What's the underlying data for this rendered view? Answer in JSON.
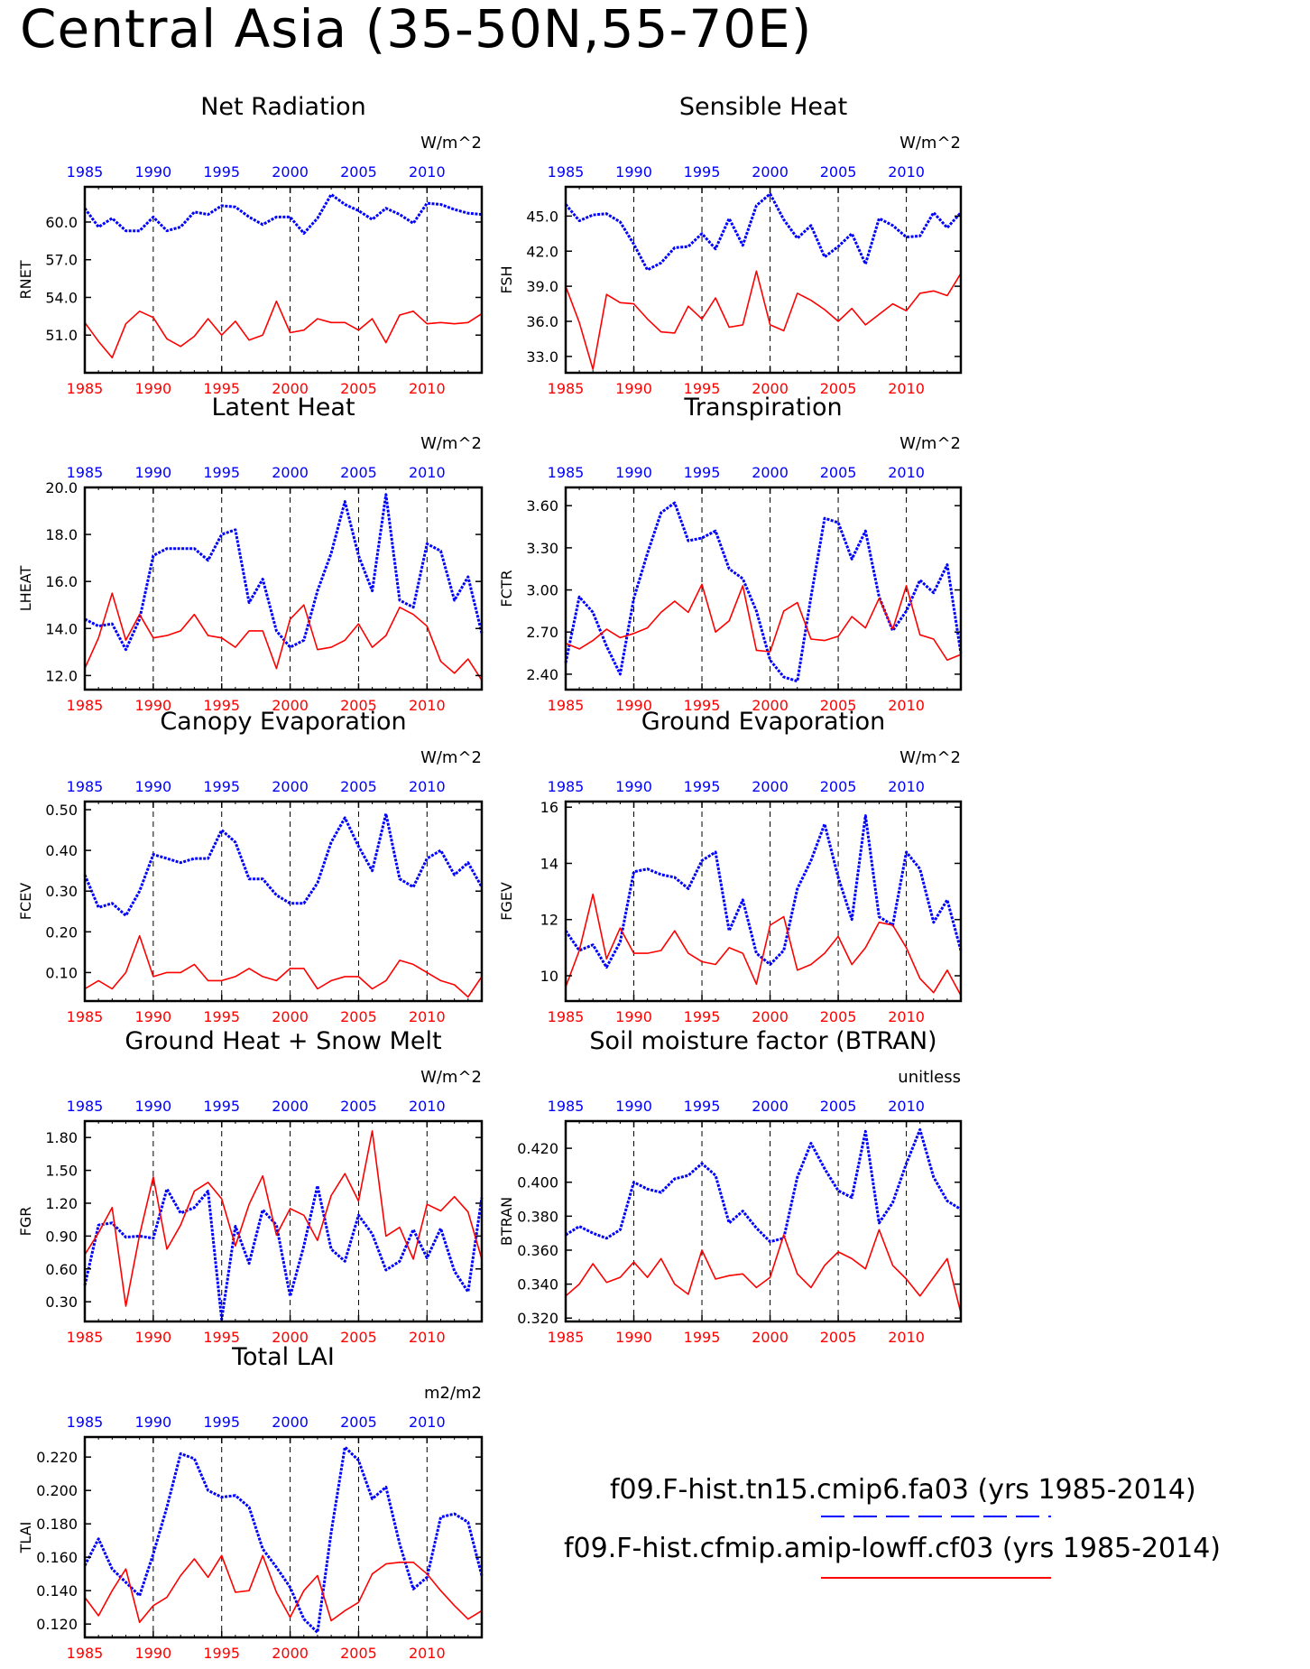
{
  "figure_title": "Central Asia (35-50N,55-70E)",
  "colors": {
    "series1": "#0000ff",
    "series2": "#ff0000",
    "axis": "#000000"
  },
  "legend": [
    {
      "label": "f09.F-hist.tn15.cmip6.fa03 (yrs 1985-2014)",
      "color": "#0000ff",
      "style": "dashed"
    },
    {
      "label": "f09.F-hist.cfmip.amip-lowff.cf03 (yrs 1985-2014)",
      "color": "#ff0000",
      "style": "solid"
    }
  ],
  "chart_data": [
    {
      "type": "line",
      "title": "Net Radiation",
      "ylabel": "RNET",
      "units": "W/m^2",
      "x": [
        1985,
        1986,
        1987,
        1988,
        1989,
        1990,
        1991,
        1992,
        1993,
        1994,
        1995,
        1996,
        1997,
        1998,
        1999,
        2000,
        2001,
        2002,
        2003,
        2004,
        2005,
        2006,
        2007,
        2008,
        2009,
        2010,
        2011,
        2012,
        2013,
        2014
      ],
      "xticks": [
        "1985",
        "1990",
        "1995",
        "2000",
        "2005",
        "2010"
      ],
      "yticks": [
        "51.0",
        "54.0",
        "57.0",
        "60.0"
      ],
      "ytick_values": [
        51,
        54,
        57,
        60
      ],
      "ylim": [
        48.0,
        62.8
      ],
      "series": [
        {
          "values": [
            61.1,
            59.6,
            60.3,
            59.3,
            59.3,
            60.4,
            59.3,
            59.6,
            60.8,
            60.6,
            61.3,
            61.2,
            60.4,
            59.8,
            60.4,
            60.4,
            59.1,
            60.3,
            62.2,
            61.4,
            60.9,
            60.2,
            61.1,
            60.6,
            59.9,
            61.5,
            61.4,
            61.0,
            60.7,
            60.6
          ]
        },
        {
          "values": [
            52.0,
            50.5,
            49.2,
            51.9,
            52.9,
            52.4,
            50.7,
            50.1,
            50.9,
            52.3,
            51.0,
            52.1,
            50.6,
            51.0,
            53.7,
            51.2,
            51.4,
            52.3,
            52.0,
            52.0,
            51.4,
            52.3,
            50.4,
            52.6,
            52.9,
            51.9,
            52.0,
            51.9,
            52.0,
            52.7
          ]
        }
      ]
    },
    {
      "type": "line",
      "title": "Sensible Heat",
      "ylabel": "FSH",
      "units": "W/m^2",
      "x": [
        1985,
        1986,
        1987,
        1988,
        1989,
        1990,
        1991,
        1992,
        1993,
        1994,
        1995,
        1996,
        1997,
        1998,
        1999,
        2000,
        2001,
        2002,
        2003,
        2004,
        2005,
        2006,
        2007,
        2008,
        2009,
        2010,
        2011,
        2012,
        2013,
        2014
      ],
      "xticks": [
        "1985",
        "1990",
        "1995",
        "2000",
        "2005",
        "2010"
      ],
      "yticks": [
        "33.0",
        "36.0",
        "39.0",
        "42.0",
        "45.0"
      ],
      "ytick_values": [
        33,
        36,
        39,
        42,
        45
      ],
      "ylim": [
        31.6,
        47.5
      ],
      "series": [
        {
          "values": [
            46.0,
            44.6,
            45.1,
            45.2,
            44.5,
            42.6,
            40.4,
            41.0,
            42.3,
            42.4,
            43.5,
            42.2,
            44.8,
            42.5,
            45.9,
            46.9,
            44.7,
            43.1,
            44.2,
            41.5,
            42.4,
            43.5,
            40.9,
            44.8,
            44.2,
            43.2,
            43.3,
            45.3,
            44.0,
            45.3
          ]
        },
        {
          "values": [
            39.0,
            35.9,
            31.9,
            38.3,
            37.6,
            37.5,
            36.2,
            35.1,
            35.0,
            37.3,
            36.2,
            38.0,
            35.5,
            35.7,
            40.3,
            35.7,
            35.2,
            38.4,
            37.8,
            37.0,
            36.0,
            37.1,
            35.7,
            36.6,
            37.5,
            36.9,
            38.4,
            38.6,
            38.2,
            40.1
          ]
        }
      ]
    },
    {
      "type": "line",
      "title": "Latent Heat",
      "ylabel": "LHEAT",
      "units": "W/m^2",
      "x": [
        1985,
        1986,
        1987,
        1988,
        1989,
        1990,
        1991,
        1992,
        1993,
        1994,
        1995,
        1996,
        1997,
        1998,
        1999,
        2000,
        2001,
        2002,
        2003,
        2004,
        2005,
        2006,
        2007,
        2008,
        2009,
        2010,
        2011,
        2012,
        2013,
        2014
      ],
      "xticks": [
        "1985",
        "1990",
        "1995",
        "2000",
        "2005",
        "2010"
      ],
      "yticks": [
        "12.0",
        "14.0",
        "16.0",
        "18.0",
        "20.0"
      ],
      "ytick_values": [
        12,
        14,
        16,
        18,
        20
      ],
      "ylim": [
        11.4,
        20.0
      ],
      "series": [
        {
          "values": [
            14.4,
            14.1,
            14.2,
            13.1,
            14.4,
            17.1,
            17.4,
            17.4,
            17.4,
            16.9,
            18.0,
            18.2,
            15.1,
            16.1,
            13.9,
            13.2,
            13.5,
            15.6,
            17.2,
            19.4,
            17.1,
            15.6,
            19.7,
            15.2,
            14.9,
            17.6,
            17.3,
            15.2,
            16.2,
            13.8
          ]
        },
        {
          "values": [
            12.3,
            13.6,
            15.5,
            13.5,
            14.6,
            13.6,
            13.7,
            13.9,
            14.6,
            13.7,
            13.6,
            13.2,
            13.9,
            13.9,
            12.3,
            14.4,
            15.0,
            13.1,
            13.2,
            13.5,
            14.2,
            13.2,
            13.7,
            14.9,
            14.6,
            14.1,
            12.6,
            12.1,
            12.7,
            11.8
          ]
        }
      ]
    },
    {
      "type": "line",
      "title": "Transpiration",
      "ylabel": "FCTR",
      "units": "W/m^2",
      "x": [
        1985,
        1986,
        1987,
        1988,
        1989,
        1990,
        1991,
        1992,
        1993,
        1994,
        1995,
        1996,
        1997,
        1998,
        1999,
        2000,
        2001,
        2002,
        2003,
        2004,
        2005,
        2006,
        2007,
        2008,
        2009,
        2010,
        2011,
        2012,
        2013,
        2014
      ],
      "xticks": [
        "1985",
        "1990",
        "1995",
        "2000",
        "2005",
        "2010"
      ],
      "yticks": [
        "2.40",
        "2.70",
        "3.00",
        "3.30",
        "3.60"
      ],
      "ytick_values": [
        2.4,
        2.7,
        3.0,
        3.3,
        3.6
      ],
      "ylim": [
        2.29,
        3.73
      ],
      "series": [
        {
          "values": [
            2.48,
            2.95,
            2.84,
            2.6,
            2.4,
            2.94,
            3.26,
            3.55,
            3.62,
            3.35,
            3.37,
            3.42,
            3.15,
            3.08,
            2.85,
            2.5,
            2.38,
            2.35,
            2.95,
            3.51,
            3.48,
            3.22,
            3.42,
            2.95,
            2.71,
            2.85,
            3.07,
            2.98,
            3.18,
            2.55
          ]
        },
        {
          "values": [
            2.62,
            2.58,
            2.64,
            2.72,
            2.66,
            2.69,
            2.73,
            2.84,
            2.92,
            2.84,
            3.04,
            2.7,
            2.78,
            3.03,
            2.57,
            2.56,
            2.85,
            2.91,
            2.65,
            2.64,
            2.67,
            2.81,
            2.73,
            2.94,
            2.72,
            3.03,
            2.68,
            2.65,
            2.5,
            2.54
          ]
        }
      ]
    },
    {
      "type": "line",
      "title": "Canopy Evaporation",
      "ylabel": "FCEV",
      "units": "W/m^2",
      "x": [
        1985,
        1986,
        1987,
        1988,
        1989,
        1990,
        1991,
        1992,
        1993,
        1994,
        1995,
        1996,
        1997,
        1998,
        1999,
        2000,
        2001,
        2002,
        2003,
        2004,
        2005,
        2006,
        2007,
        2008,
        2009,
        2010,
        2011,
        2012,
        2013,
        2014
      ],
      "xticks": [
        "1985",
        "1990",
        "1995",
        "2000",
        "2005",
        "2010"
      ],
      "yticks": [
        "0.10",
        "0.20",
        "0.30",
        "0.40",
        "0.50"
      ],
      "ytick_values": [
        0.1,
        0.2,
        0.3,
        0.4,
        0.5
      ],
      "ylim": [
        0.03,
        0.52
      ],
      "series": [
        {
          "values": [
            0.34,
            0.26,
            0.27,
            0.24,
            0.3,
            0.39,
            0.38,
            0.37,
            0.38,
            0.38,
            0.45,
            0.42,
            0.33,
            0.33,
            0.29,
            0.27,
            0.27,
            0.32,
            0.42,
            0.48,
            0.41,
            0.35,
            0.49,
            0.33,
            0.31,
            0.38,
            0.4,
            0.34,
            0.37,
            0.31
          ]
        },
        {
          "values": [
            0.06,
            0.08,
            0.06,
            0.1,
            0.19,
            0.09,
            0.1,
            0.1,
            0.12,
            0.08,
            0.08,
            0.09,
            0.11,
            0.09,
            0.08,
            0.11,
            0.11,
            0.06,
            0.08,
            0.09,
            0.09,
            0.06,
            0.08,
            0.13,
            0.12,
            0.1,
            0.08,
            0.07,
            0.04,
            0.09
          ]
        }
      ]
    },
    {
      "type": "line",
      "title": "Ground Evaporation",
      "ylabel": "FGEV",
      "units": "W/m^2",
      "x": [
        1985,
        1986,
        1987,
        1988,
        1989,
        1990,
        1991,
        1992,
        1993,
        1994,
        1995,
        1996,
        1997,
        1998,
        1999,
        2000,
        2001,
        2002,
        2003,
        2004,
        2005,
        2006,
        2007,
        2008,
        2009,
        2010,
        2011,
        2012,
        2013,
        2014
      ],
      "xticks": [
        "1985",
        "1990",
        "1995",
        "2000",
        "2005",
        "2010"
      ],
      "yticks": [
        "10",
        "12",
        "14",
        "16"
      ],
      "ytick_values": [
        10,
        12,
        14,
        16
      ],
      "ylim": [
        9.1,
        16.2
      ],
      "series": [
        {
          "values": [
            11.6,
            10.9,
            11.1,
            10.3,
            11.2,
            13.7,
            13.8,
            13.6,
            13.5,
            13.1,
            14.1,
            14.4,
            11.6,
            12.7,
            10.8,
            10.4,
            10.9,
            13.1,
            14.1,
            15.4,
            13.5,
            12.0,
            15.7,
            12.1,
            11.8,
            14.4,
            13.8,
            11.9,
            12.7,
            10.9
          ]
        },
        {
          "values": [
            9.6,
            10.9,
            12.9,
            10.6,
            11.7,
            10.8,
            10.8,
            10.9,
            11.6,
            10.8,
            10.5,
            10.4,
            11.0,
            10.8,
            9.7,
            11.8,
            12.1,
            10.2,
            10.4,
            10.8,
            11.4,
            10.4,
            11.0,
            11.9,
            11.8,
            11.0,
            9.9,
            9.4,
            10.2,
            9.3
          ]
        }
      ]
    },
    {
      "type": "line",
      "title": "Ground Heat + Snow Melt",
      "ylabel": "FGR",
      "units": "W/m^2",
      "x": [
        1985,
        1986,
        1987,
        1988,
        1989,
        1990,
        1991,
        1992,
        1993,
        1994,
        1995,
        1996,
        1997,
        1998,
        1999,
        2000,
        2001,
        2002,
        2003,
        2004,
        2005,
        2006,
        2007,
        2008,
        2009,
        2010,
        2011,
        2012,
        2013,
        2014
      ],
      "xticks": [
        "1985",
        "1990",
        "1995",
        "2000",
        "2005",
        "2010"
      ],
      "yticks": [
        "0.30",
        "0.60",
        "0.90",
        "1.20",
        "1.50",
        "1.80"
      ],
      "ytick_values": [
        0.3,
        0.6,
        0.9,
        1.2,
        1.5,
        1.8
      ],
      "ylim": [
        0.12,
        1.95
      ],
      "series": [
        {
          "values": [
            0.45,
            1.0,
            1.02,
            0.89,
            0.9,
            0.88,
            1.33,
            1.11,
            1.16,
            1.31,
            0.14,
            0.99,
            0.65,
            1.14,
            1.0,
            0.35,
            0.81,
            1.36,
            0.78,
            0.67,
            1.09,
            0.92,
            0.59,
            0.67,
            0.96,
            0.7,
            0.97,
            0.58,
            0.39,
            1.25
          ]
        },
        {
          "values": [
            0.73,
            0.93,
            1.16,
            0.26,
            0.91,
            1.44,
            0.78,
            1.0,
            1.31,
            1.39,
            1.24,
            0.81,
            1.19,
            1.45,
            0.91,
            1.15,
            1.09,
            0.86,
            1.27,
            1.47,
            1.22,
            1.86,
            0.9,
            0.98,
            0.69,
            1.19,
            1.13,
            1.26,
            1.12,
            0.69
          ]
        }
      ]
    },
    {
      "type": "line",
      "title": "Soil moisture factor (BTRAN)",
      "ylabel": "BTRAN",
      "units": "unitless",
      "x": [
        1985,
        1986,
        1987,
        1988,
        1989,
        1990,
        1991,
        1992,
        1993,
        1994,
        1995,
        1996,
        1997,
        1998,
        1999,
        2000,
        2001,
        2002,
        2003,
        2004,
        2005,
        2006,
        2007,
        2008,
        2009,
        2010,
        2011,
        2012,
        2013,
        2014
      ],
      "xticks": [
        "1985",
        "1990",
        "1995",
        "2000",
        "2005",
        "2010"
      ],
      "yticks": [
        "0.320",
        "0.340",
        "0.360",
        "0.380",
        "0.400",
        "0.420"
      ],
      "ytick_values": [
        0.32,
        0.34,
        0.36,
        0.38,
        0.4,
        0.42
      ],
      "ylim": [
        0.318,
        0.436
      ],
      "series": [
        {
          "values": [
            0.369,
            0.374,
            0.37,
            0.367,
            0.372,
            0.4,
            0.396,
            0.394,
            0.402,
            0.404,
            0.411,
            0.404,
            0.376,
            0.383,
            0.373,
            0.365,
            0.367,
            0.403,
            0.423,
            0.408,
            0.395,
            0.391,
            0.43,
            0.376,
            0.388,
            0.411,
            0.431,
            0.403,
            0.389,
            0.384
          ]
        },
        {
          "values": [
            0.333,
            0.34,
            0.352,
            0.341,
            0.344,
            0.353,
            0.344,
            0.355,
            0.34,
            0.334,
            0.36,
            0.343,
            0.345,
            0.346,
            0.338,
            0.344,
            0.369,
            0.346,
            0.338,
            0.351,
            0.359,
            0.355,
            0.349,
            0.372,
            0.351,
            0.343,
            0.333,
            0.344,
            0.355,
            0.323
          ]
        }
      ]
    },
    {
      "type": "line",
      "title": "Total LAI",
      "ylabel": "TLAI",
      "units": "m2/m2",
      "x": [
        1985,
        1986,
        1987,
        1988,
        1989,
        1990,
        1991,
        1992,
        1993,
        1994,
        1995,
        1996,
        1997,
        1998,
        1999,
        2000,
        2001,
        2002,
        2003,
        2004,
        2005,
        2006,
        2007,
        2008,
        2009,
        2010,
        2011,
        2012,
        2013,
        2014
      ],
      "xticks": [
        "1985",
        "1990",
        "1995",
        "2000",
        "2005",
        "2010"
      ],
      "yticks": [
        "0.120",
        "0.140",
        "0.160",
        "0.180",
        "0.200",
        "0.220"
      ],
      "ytick_values": [
        0.12,
        0.14,
        0.16,
        0.18,
        0.2,
        0.22
      ],
      "ylim": [
        0.112,
        0.232
      ],
      "series": [
        {
          "values": [
            0.155,
            0.171,
            0.153,
            0.145,
            0.137,
            0.162,
            0.19,
            0.222,
            0.219,
            0.2,
            0.196,
            0.197,
            0.19,
            0.165,
            0.154,
            0.142,
            0.123,
            0.115,
            0.175,
            0.226,
            0.218,
            0.195,
            0.202,
            0.168,
            0.141,
            0.148,
            0.184,
            0.186,
            0.181,
            0.149
          ]
        },
        {
          "values": [
            0.136,
            0.125,
            0.14,
            0.153,
            0.121,
            0.131,
            0.136,
            0.149,
            0.159,
            0.148,
            0.161,
            0.139,
            0.14,
            0.161,
            0.139,
            0.124,
            0.14,
            0.149,
            0.122,
            0.128,
            0.133,
            0.15,
            0.156,
            0.157,
            0.157,
            0.15,
            0.14,
            0.131,
            0.123,
            0.128
          ]
        }
      ]
    }
  ]
}
